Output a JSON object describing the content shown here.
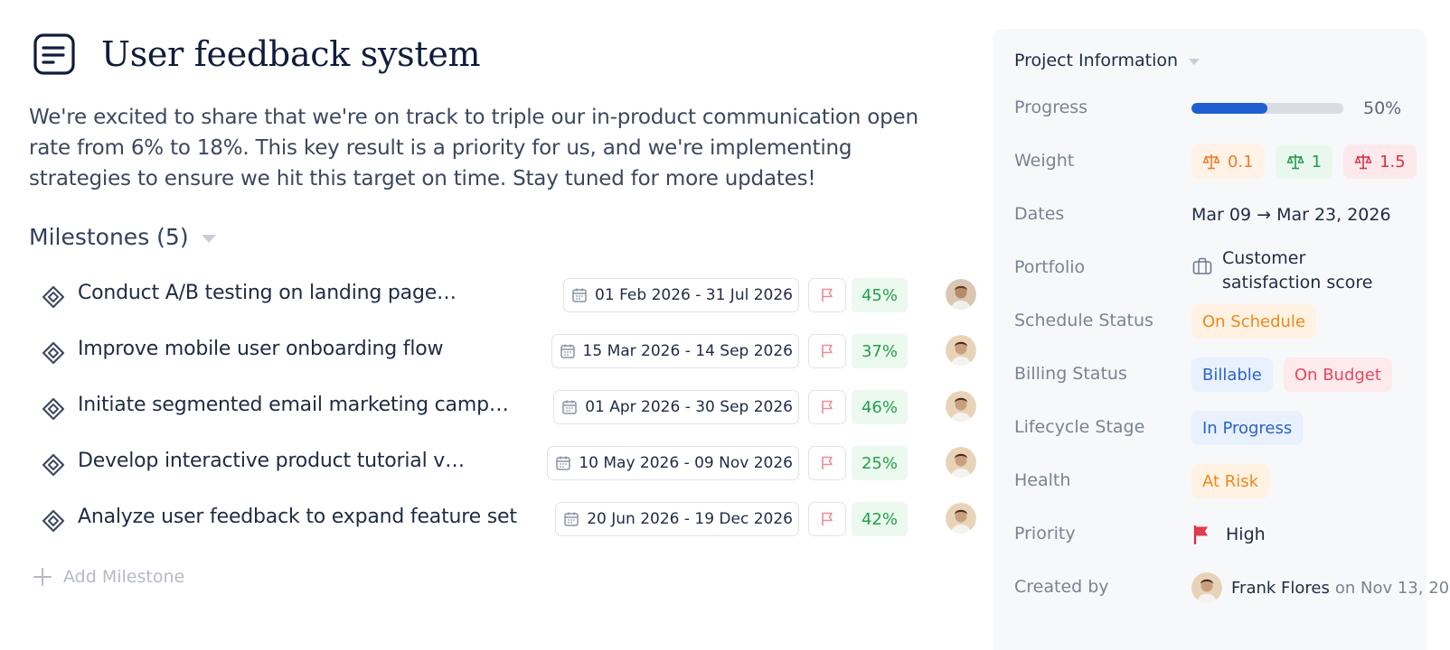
{
  "page": {
    "title": "User feedback system",
    "description": "We're excited to share that we're on track to triple our in-product communication open rate from 6% to 18%. This key result is a priority for us, and we're implementing strategies to ensure we hit this target on time.  Stay tuned for more updates!"
  },
  "milestones": {
    "header": "Milestones (5)",
    "add_label": "Add Milestone",
    "items": [
      {
        "name": "Conduct A/B testing on landing page…",
        "dates": "01 Feb 2026 - 31 Jul 2026",
        "percent": "45%"
      },
      {
        "name": "Improve mobile user onboarding flow",
        "dates": "15 Mar 2026 - 14 Sep 2026",
        "percent": "37%"
      },
      {
        "name": "Initiate segmented email marketing camp…",
        "dates": "01 Apr 2026 - 30 Sep 2026",
        "percent": "46%"
      },
      {
        "name": "Develop interactive product tutorial v…",
        "dates": "10 May 2026 - 09 Nov 2026",
        "percent": "25%"
      },
      {
        "name": "Analyze user feedback to expand feature set",
        "dates": "20 Jun 2026 - 19 Dec 2026",
        "percent": "42%"
      }
    ]
  },
  "project_info": {
    "header": "Project Information",
    "progress": {
      "label": "Progress",
      "value": 0.5,
      "text": "50%"
    },
    "weight": {
      "label": "Weight",
      "values": [
        "0.1",
        "1",
        "1.5"
      ]
    },
    "dates": {
      "label": "Dates",
      "value": "Mar 09 → Mar 23, 2026"
    },
    "portfolio": {
      "label": "Portfolio",
      "value": "Customer satisfaction score"
    },
    "schedule_status": {
      "label": "Schedule Status",
      "value": "On Schedule"
    },
    "billing_status": {
      "label": "Billing Status",
      "values": [
        "Billable",
        "On Budget"
      ]
    },
    "lifecycle_stage": {
      "label": "Lifecycle Stage",
      "value": "In Progress"
    },
    "health": {
      "label": "Health",
      "value": "At Risk"
    },
    "priority": {
      "label": "Priority",
      "value": "High"
    },
    "created_by": {
      "label": "Created by",
      "name": "Frank Flores",
      "date": "on Nov 13, 20"
    }
  },
  "colors": {
    "accent": "#1f5fd1",
    "success": "#22a04b",
    "warning": "#ea8a1b",
    "danger": "#d63247"
  },
  "icons": [
    "document-icon",
    "milestone-diamond-icon",
    "calendar-icon",
    "flag-outline-icon",
    "avatar",
    "plus-icon",
    "scale-icon",
    "briefcase-icon",
    "flag-filled-icon"
  ]
}
